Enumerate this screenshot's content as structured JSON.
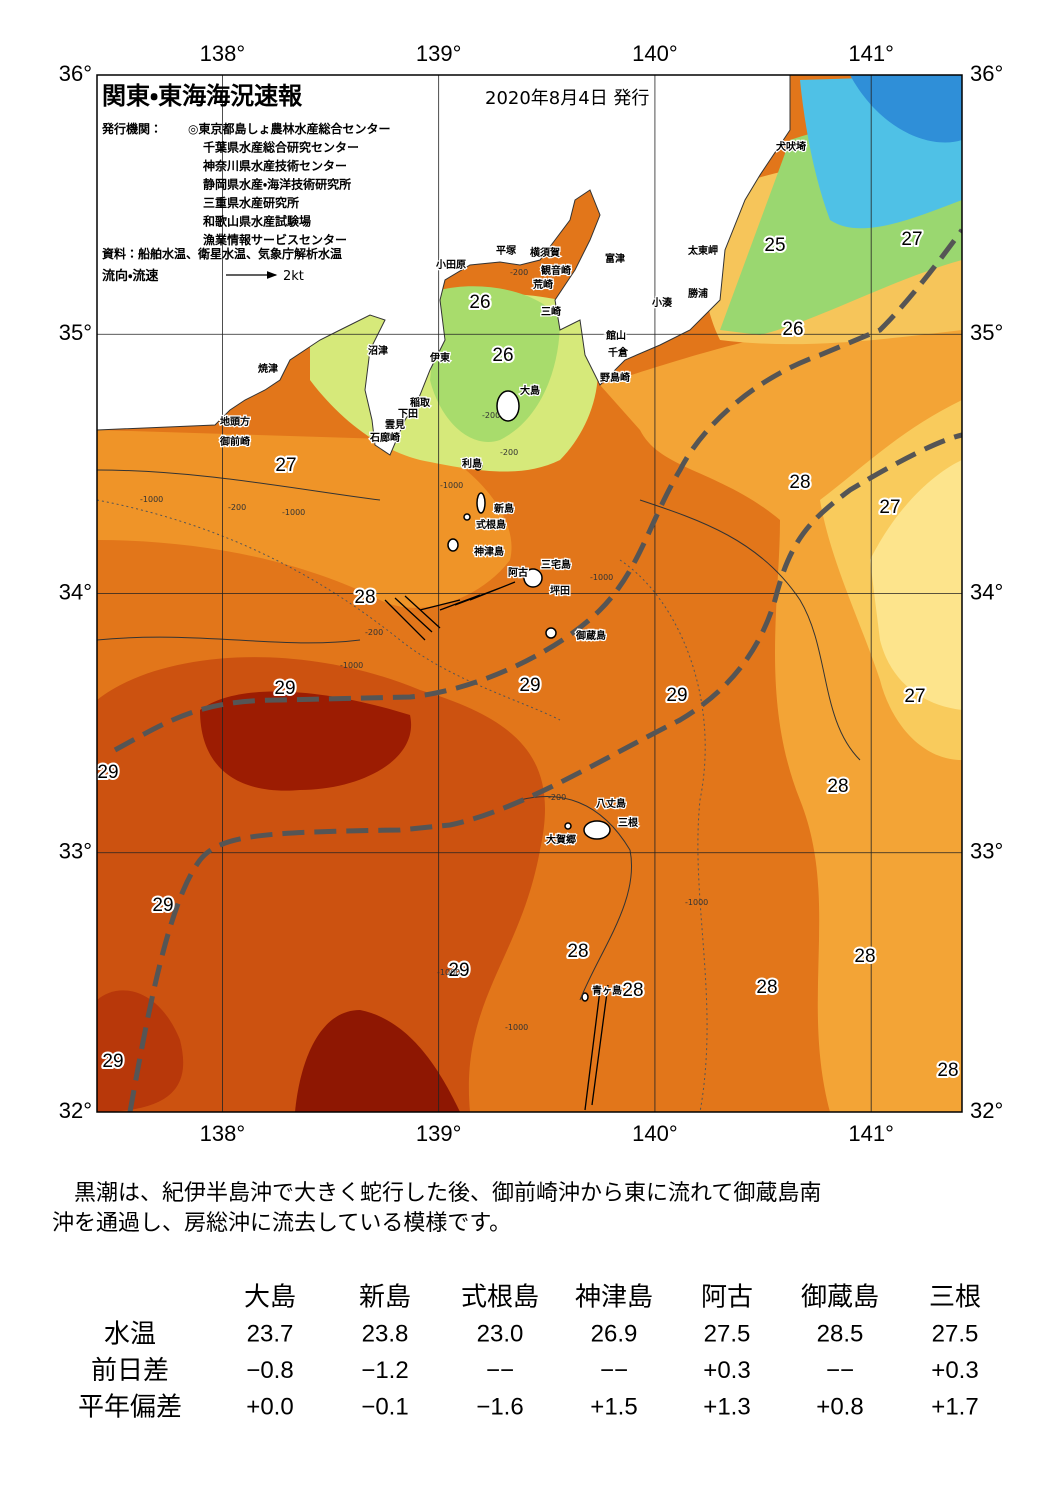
{
  "map": {
    "title": "関東・東海海況速報",
    "date": "2020年8月4日 発行",
    "issuers_label": "発行機関：",
    "issuers": [
      "◎東京都島しょ農林水産総合センター",
      "千葉県水産総合研究センター",
      "神奈川県水産技術センター",
      "静岡県水産・海洋技術研究所",
      "三重県水産研究所",
      "和歌山県水産試験場",
      "漁業情報サービスセンター"
    ],
    "sources": "資料：船舶水温、衛星水温、気象庁解析水温",
    "current_label": "流向・流速",
    "current_scale": "2kt",
    "xlim": [
      137.42,
      141.42
    ],
    "ylim": [
      32,
      36
    ],
    "lon_ticks": [
      {
        "value": 138,
        "label": "138°"
      },
      {
        "value": 139,
        "label": "139°"
      },
      {
        "value": 140,
        "label": "140°"
      },
      {
        "value": 141,
        "label": "141°"
      }
    ],
    "lat_ticks": [
      {
        "value": 36,
        "label": "36°"
      },
      {
        "value": 35,
        "label": "35°"
      },
      {
        "value": 34,
        "label": "34°"
      },
      {
        "value": 33,
        "label": "33°"
      },
      {
        "value": 32,
        "label": "32°"
      }
    ],
    "isotherm_labels": [
      25,
      27,
      26,
      26,
      26,
      27,
      28,
      27,
      28,
      29,
      29,
      29,
      27,
      29,
      28,
      29,
      28,
      29,
      28,
      28,
      28,
      29,
      28
    ],
    "depth_labels": [
      "-200",
      "-200",
      "-1000",
      "-200",
      "-1000",
      "-200",
      "-1000",
      "-200",
      "-1000",
      "-1000",
      "-200",
      "-1000",
      "-1000",
      "-1000"
    ],
    "place_names": [
      "犬吠埼",
      "太東岬",
      "勝浦",
      "小湊",
      "富津",
      "横須賀",
      "平塚",
      "小田原",
      "観音崎",
      "荒崎",
      "三崎",
      "館山",
      "千倉",
      "野島崎",
      "沼津",
      "伊東",
      "焼津",
      "稲取",
      "下田",
      "雲見",
      "石廊崎",
      "地頭方",
      "御前崎",
      "大島",
      "利島",
      "新島",
      "式根島",
      "神津島",
      "三宅島",
      "阿古",
      "坪田",
      "御蔵島",
      "八丈島",
      "三根",
      "大賀郷",
      "青ヶ島"
    ]
  },
  "summary": [
    "　黒潮は、紀伊半島沖で大きく蛇行した後、御前崎沖から東に流れて御蔵島南",
    "沖を通過し、房総沖に流去している模様です。"
  ],
  "table": {
    "columns": [
      "大島",
      "新島",
      "式根島",
      "神津島",
      "阿古",
      "御蔵島",
      "三根"
    ],
    "rows": [
      {
        "label": "水温",
        "cells": [
          "23.7",
          "23.8",
          "23.0",
          "26.9",
          "27.5",
          "28.5",
          "27.5"
        ]
      },
      {
        "label": "前日差",
        "cells": [
          "−0.8",
          "−1.2",
          "−−",
          "−−",
          "+0.3",
          "−−",
          "+0.3"
        ]
      },
      {
        "label": "平年偏差",
        "cells": [
          "+0.0",
          "−0.1",
          "−1.6",
          "+1.5",
          "+1.3",
          "+0.8",
          "+1.7"
        ]
      }
    ]
  }
}
